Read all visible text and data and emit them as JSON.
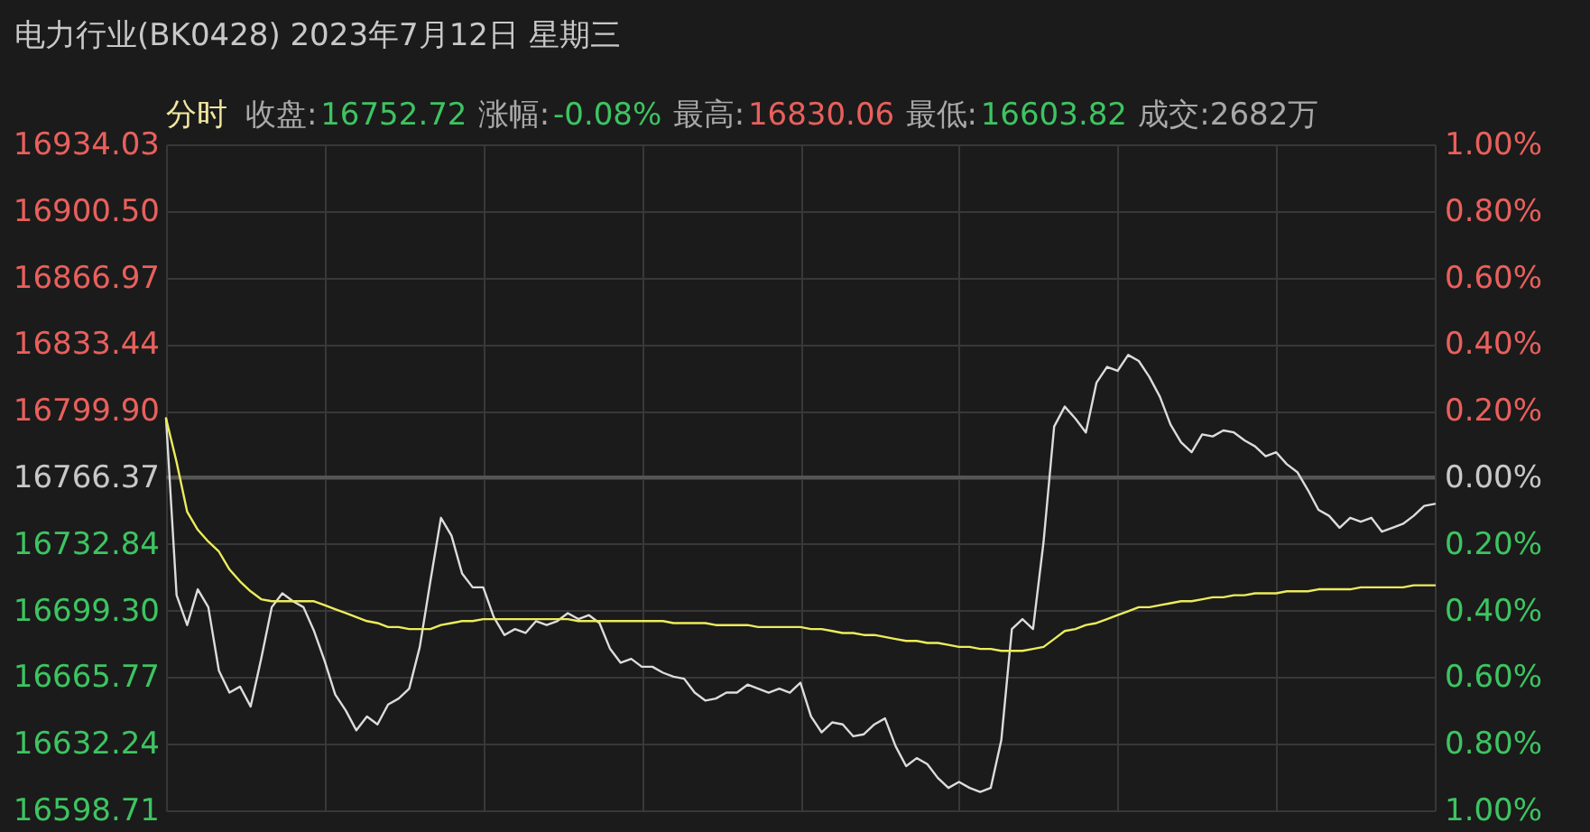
{
  "chart_data": {
    "type": "line",
    "title": "电力行业(BK0428) 2023年7月12日 星期三",
    "annotations": [
      "分时",
      "收盘:",
      "16752.72",
      "涨幅:",
      "-0.08%",
      "最高:",
      "16830.06",
      "最低:",
      "16603.82",
      "成交:2682万"
    ],
    "categories": [
      null,
      null,
      null,
      null,
      null,
      null,
      null,
      null,
      null,
      null,
      null,
      null,
      null,
      null,
      null,
      null,
      null,
      null,
      null,
      null,
      null,
      null,
      null,
      null,
      null,
      null,
      null,
      null,
      null,
      null,
      null,
      null,
      null,
      null,
      null,
      null,
      null,
      null,
      null,
      null,
      null,
      null,
      null,
      null,
      null,
      null,
      null,
      null,
      null,
      null,
      null,
      null,
      null,
      null,
      null,
      null,
      null,
      null,
      null,
      null,
      null,
      null,
      null,
      null,
      null,
      null,
      null,
      null,
      null,
      null,
      null,
      null,
      null,
      null,
      null,
      null,
      null,
      null,
      null,
      null,
      null,
      null,
      null,
      null,
      null,
      null,
      null,
      null,
      null,
      null,
      null,
      null,
      null,
      null,
      null,
      null,
      null,
      null,
      null,
      null,
      null,
      null,
      null,
      null,
      null,
      null,
      null,
      null,
      null,
      null,
      null,
      null,
      null,
      null,
      null,
      null,
      null,
      null,
      null,
      null,
      null
    ],
    "series": [
      {
        "color": "#dcdcdc",
        "values": [
          16796,
          16707,
          16692,
          16710,
          16701,
          16669,
          16658,
          16661,
          16651,
          16675,
          16701,
          16708,
          16704,
          16701,
          16689,
          16674,
          16657,
          16649,
          16639,
          16646,
          16642,
          16652,
          16655,
          16660,
          16681,
          16714,
          16746,
          16737,
          16718,
          16711,
          16711,
          16696,
          16687,
          16690,
          16688,
          16694,
          16692,
          16694,
          16698,
          16695,
          16697,
          16693,
          16680,
          16673,
          16675,
          16671,
          16671,
          16668,
          16666,
          16665,
          16658,
          16654,
          16655,
          16658,
          16658,
          16662,
          16660,
          16658,
          16660,
          16658,
          16663,
          16646,
          16638,
          16643,
          16642,
          16636,
          16637,
          16642,
          16645,
          16631,
          16621,
          16625,
          16622,
          16615,
          16610,
          16613,
          16610,
          16608,
          16610,
          16634,
          16690,
          16695,
          16690,
          16734,
          16792,
          16802,
          16796,
          16789,
          16814,
          16822,
          16820,
          16828,
          16825,
          16817,
          16807,
          16793,
          16784,
          16779,
          16788,
          16787,
          16790,
          16789,
          16785,
          16782,
          16777,
          16779,
          16773,
          16769,
          16760,
          16750,
          16747,
          16741,
          16746,
          16744,
          16746,
          16739,
          16741,
          16743,
          16747,
          16752,
          16753
        ]
      },
      {
        "color": "#ecec5c",
        "values": [
          16796,
          16774,
          16749,
          16740,
          16734,
          16729,
          16720,
          16714,
          16709,
          16705,
          16704,
          16704,
          16704,
          16704,
          16704,
          16702,
          16700,
          16698,
          16696,
          16694,
          16693,
          16691,
          16691,
          16690,
          16690,
          16690,
          16692,
          16693,
          16694,
          16694,
          16695,
          16695,
          16695,
          16695,
          16695,
          16695,
          16695,
          16695,
          16695,
          16694,
          16694,
          16694,
          16694,
          16694,
          16694,
          16694,
          16694,
          16694,
          16693,
          16693,
          16693,
          16693,
          16692,
          16692,
          16692,
          16692,
          16691,
          16691,
          16691,
          16691,
          16691,
          16690,
          16690,
          16689,
          16688,
          16688,
          16687,
          16687,
          16686,
          16685,
          16684,
          16684,
          16683,
          16683,
          16682,
          16681,
          16681,
          16680,
          16680,
          16679,
          16679,
          16679,
          16680,
          16681,
          16685,
          16689,
          16690,
          16692,
          16693,
          16695,
          16697,
          16699,
          16701,
          16701,
          16702,
          16703,
          16704,
          16704,
          16705,
          16706,
          16706,
          16707,
          16707,
          16708,
          16708,
          16708,
          16709,
          16709,
          16709,
          16710,
          16710,
          16710,
          16710,
          16711,
          16711,
          16711,
          16711,
          16711,
          16712,
          16712,
          16712
        ]
      }
    ],
    "ylim": [
      16598.71,
      16934.03
    ],
    "yticks": [
      16598.71,
      16632.24,
      16665.77,
      {
        "value": 16699.3,
        "label": "16699.30"
      },
      16732.84,
      16766.37,
      {
        "value": 16799.9,
        "label": "16799.90"
      },
      16833.44,
      16866.97,
      {
        "value": 16900.5,
        "label": "16900.50"
      },
      16934.03
    ],
    "y2lim": [
      -1,
      1
    ],
    "y2ticks": [
      {
        "value": -1,
        "label": "1.00%"
      },
      {
        "value": -0.8,
        "label": "0.80%"
      },
      {
        "value": -0.6,
        "label": "0.60%"
      },
      {
        "value": -0.4,
        "label": "0.40%"
      },
      {
        "value": -0.2,
        "label": "0.20%"
      },
      {
        "value": 0,
        "label": "0.00%"
      },
      {
        "value": 0.2,
        "label": "0.20%"
      },
      {
        "value": 0.4,
        "label": "0.40%"
      },
      {
        "value": 0.6,
        "label": "0.60%"
      },
      {
        "value": 0.8,
        "label": "0.80%"
      },
      {
        "value": 1,
        "label": "1.00%"
      }
    ],
    "ref_lines": [
      {
        "axis": "y2",
        "value": 0,
        "color": "#555555"
      }
    ],
    "grid": true,
    "line_style": "solid"
  }
}
